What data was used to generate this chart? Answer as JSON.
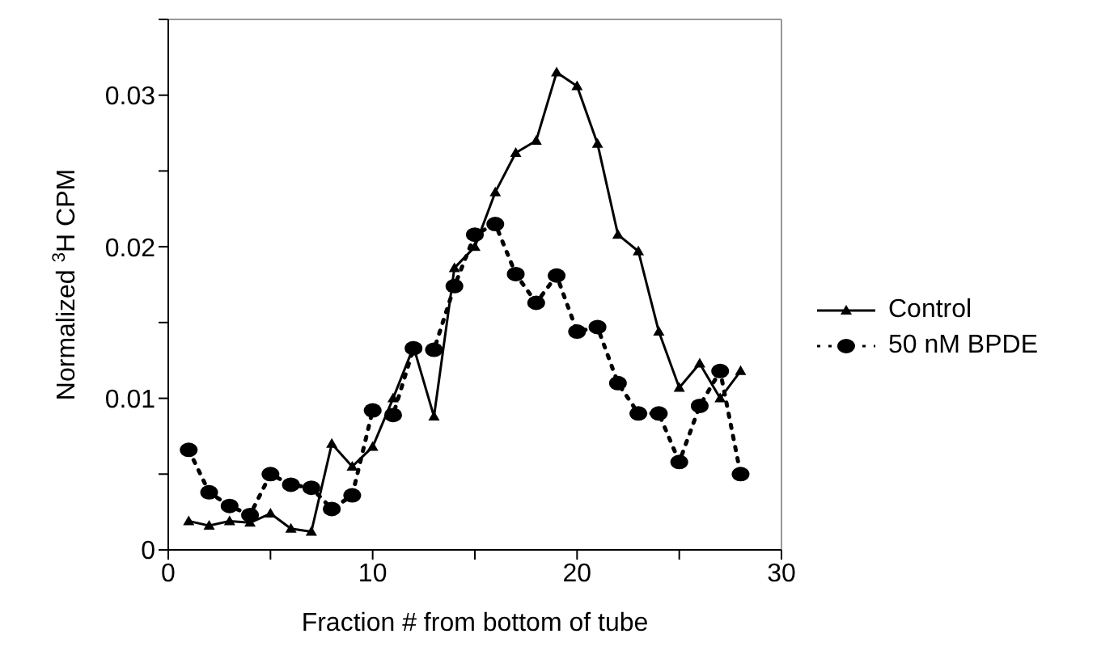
{
  "chart_data": {
    "type": "line",
    "xlabel": "Fraction # from bottom of tube",
    "ylabel": "Normalized $^{3}$H CPM",
    "x": [
      1,
      2,
      3,
      4,
      5,
      6,
      7,
      8,
      9,
      10,
      11,
      12,
      13,
      14,
      15,
      16,
      17,
      18,
      19,
      20,
      21,
      22,
      23,
      24,
      25,
      26,
      27,
      28
    ],
    "series": [
      {
        "name": "Control",
        "color": "#000000",
        "marker": "triangle",
        "line_style": "solid",
        "values": [
          0.0019,
          0.0016,
          0.0019,
          0.0018,
          0.0024,
          0.0014,
          0.0012,
          0.007,
          0.0055,
          0.0068,
          0.01,
          0.0134,
          0.0088,
          0.0186,
          0.02,
          0.0236,
          0.0262,
          0.027,
          0.0315,
          0.0306,
          0.0268,
          0.0208,
          0.0197,
          0.0144,
          0.0107,
          0.0123,
          0.01,
          0.0118
        ]
      },
      {
        "name": "50 nM BPDE",
        "color": "#000000",
        "marker": "circle",
        "line_style": "dotted",
        "values": [
          0.0066,
          0.0038,
          0.0029,
          0.0023,
          0.005,
          0.0043,
          0.0041,
          0.0027,
          0.0036,
          0.0092,
          0.0089,
          0.0133,
          0.0132,
          0.0174,
          0.0208,
          0.0215,
          0.0182,
          0.0163,
          0.0181,
          0.0144,
          0.0147,
          0.011,
          0.009,
          0.009,
          0.0058,
          0.0095,
          0.0118,
          0.005
        ]
      }
    ],
    "xlim": [
      0,
      30
    ],
    "xticks": [
      0,
      {
        "value": 5,
        "label": null
      },
      10,
      {
        "value": 15,
        "label": null
      },
      20,
      {
        "value": 25,
        "label": null
      },
      30
    ],
    "ylim": [
      0,
      0.035
    ],
    "yticks": [
      0,
      {
        "value": 0.005,
        "label": null
      },
      0.01,
      {
        "value": 0.015,
        "label": null
      },
      0.02,
      {
        "value": 0.025,
        "label": null
      },
      0.03,
      {
        "value": 0.035,
        "label": null
      }
    ],
    "grid": false,
    "legend": "right"
  }
}
